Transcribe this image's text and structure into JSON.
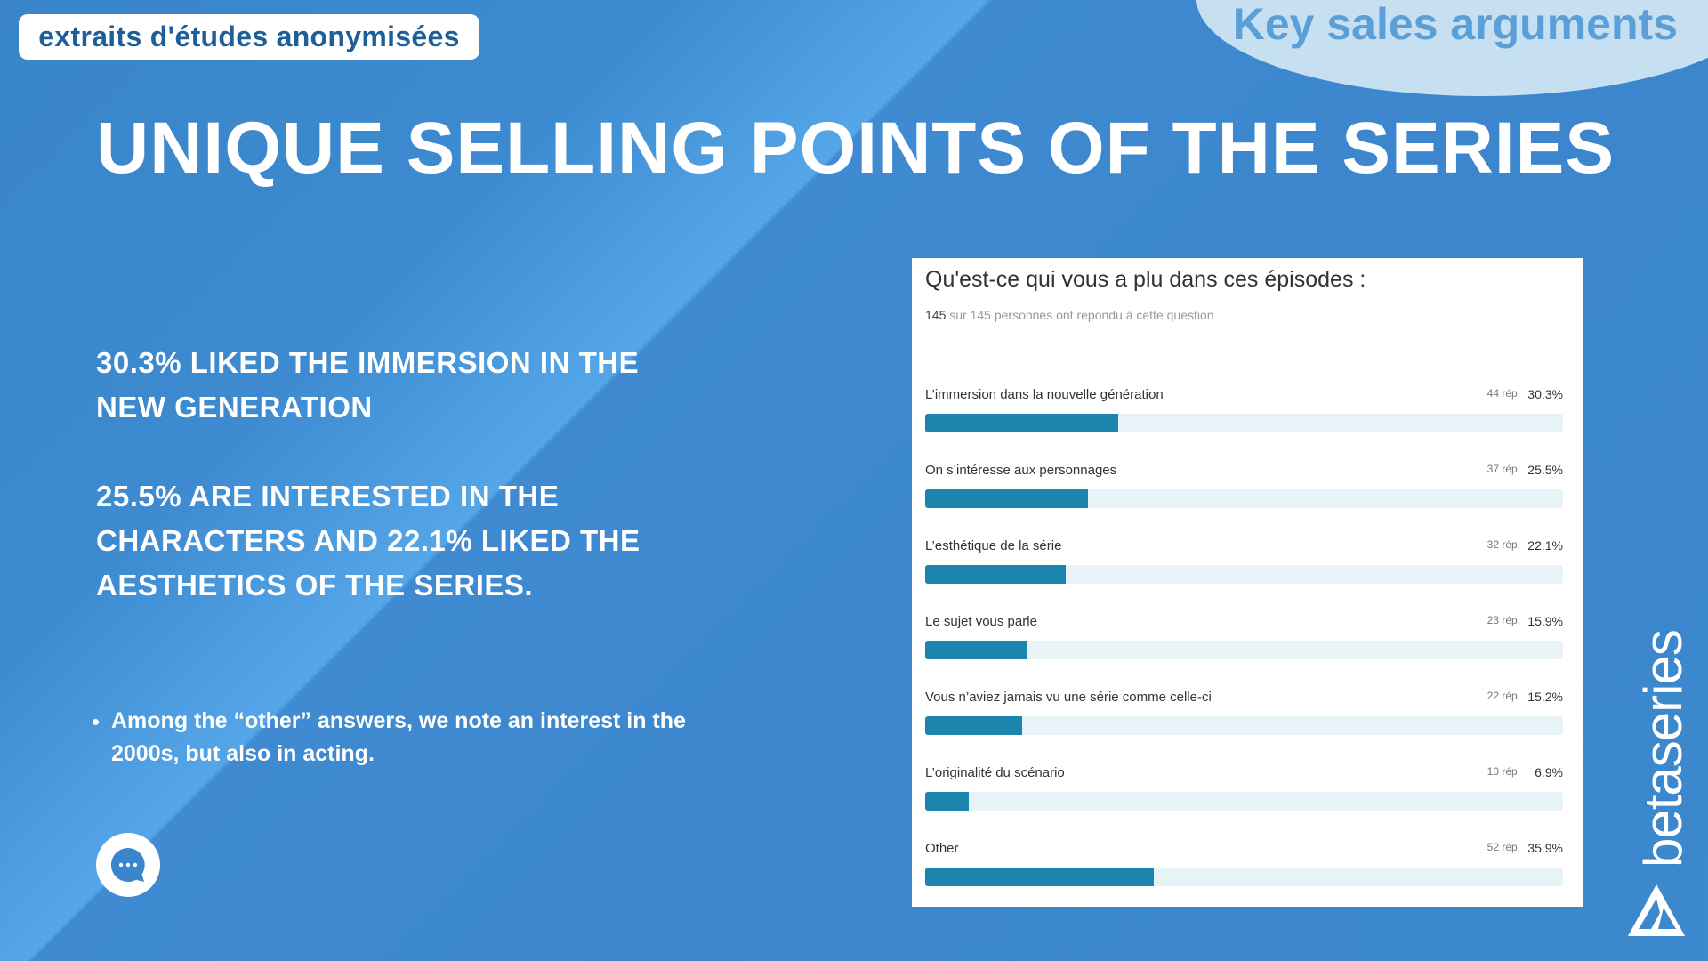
{
  "badge": "extraits d'études anonymisées",
  "section": "Key sales arguments",
  "title": "UNIQUE SELLING POINTS OF THE SERIES",
  "para1": "30.3% LIKED THE IMMERSION IN THE NEW GENERATION",
  "para2": "25.5% ARE INTERESTED IN THE CHARACTERS AND 22.1% LIKED THE AESTHETICS OF THE SERIES.",
  "note": "Among the “other” answers, we note an interest in the 2000s, but also in acting.",
  "brand": "betaseries",
  "survey": {
    "question": "Qu'est-ce qui vous a plu dans ces épisodes :",
    "respondents": "145",
    "respondents_text": " sur 145 personnes ont répondu à cette question",
    "bar_color": "#1b85ad",
    "answers": [
      {
        "label": "L’immersion dans la nouvelle génération",
        "count": "44 rép.",
        "percent": "30.3%",
        "value": 30.3
      },
      {
        "label": "On s’intéresse aux personnages",
        "count": "37 rép.",
        "percent": "25.5%",
        "value": 25.5
      },
      {
        "label": "L’esthétique de la série",
        "count": "32 rép.",
        "percent": "22.1%",
        "value": 22.1
      },
      {
        "label": "Le sujet vous parle",
        "count": "23 rép.",
        "percent": "15.9%",
        "value": 15.9
      },
      {
        "label": "Vous n’aviez jamais vu une série comme celle-ci",
        "count": "22 rép.",
        "percent": "15.2%",
        "value": 15.2
      },
      {
        "label": "L’originalité du scénario",
        "count": "10 rép.",
        "percent": "6.9%",
        "value": 6.9
      },
      {
        "label": "Other",
        "count": "52 rép.",
        "percent": "35.9%",
        "value": 35.9
      }
    ]
  }
}
